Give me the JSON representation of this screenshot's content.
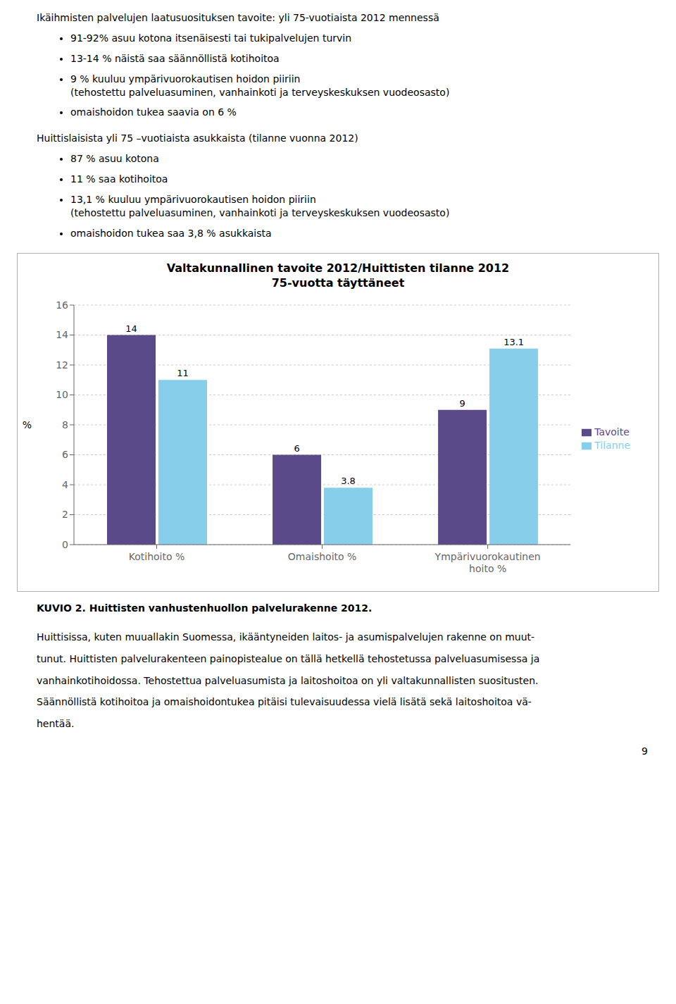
{
  "chart_data": {
    "type": "bar",
    "title": "Valtakunnallinen tavoite 2012/Huittisten tilanne 2012",
    "subtitle": "75-vuotta täyttäneet",
    "categories": [
      "Kotihoito %",
      "Omaishoito %",
      "Ympärivuorokautinen\nhoito %"
    ],
    "series": [
      {
        "name": "Tavoite",
        "color": "#5b4a8a",
        "values": [
          14,
          6,
          9
        ]
      },
      {
        "name": "Tilanne",
        "color": "#87ceeb",
        "values": [
          11,
          3.8,
          13.1
        ]
      }
    ],
    "ylabel": "%",
    "ylim": [
      0,
      16
    ],
    "yticks": [
      0,
      2,
      4,
      6,
      8,
      10,
      12,
      14,
      16
    ],
    "grid": true,
    "legend": "right",
    "data_labels": true
  },
  "sections": [
    {
      "heading": "Ikäihmisten palvelujen laatusuosituksen tavoite: yli 75-vuotiaista 2012 mennessä",
      "items": [
        [
          "91-92% asuu kotona itsenäisesti tai tukipalvelujen turvin"
        ],
        [
          "13-14 % näistä saa säännöllistä kotihoitoa"
        ],
        [
          "9 % kuuluu ympärivuorokautisen hoidon piiriin",
          "(tehostettu palveluasuminen,  vanhainkoti ja terveyskeskuksen vuodeosasto)"
        ],
        [
          "omaishoidon tukea saavia on 6 %"
        ]
      ]
    },
    {
      "heading": "Huittislaisista yli 75 –vuotiaista asukkaista (tilanne vuonna 2012)",
      "items": [
        [
          "87 % asuu kotona"
        ],
        [
          "11  % saa kotihoitoa"
        ],
        [
          "13,1 % kuuluu ympärivuorokautisen hoidon piiriin",
          "(tehostettu palveluasuminen,  vanhainkoti ja terveyskeskuksen vuodeosasto)"
        ],
        [
          "omaishoidon tukea saa 3,8 % asukkaista"
        ]
      ]
    }
  ],
  "caption": "KUVIO 2. Huittisten vanhustenhuollon palvelurakenne 2012.",
  "footer_lines": [
    "Huittisissa, kuten muuallakin Suomessa, ikääntyneiden laitos- ja asumispalvelujen rakenne on muut-",
    "tunut. Huittisten palvelurakenteen painopistealue on tällä hetkellä tehostetussa palveluasumisessa ja",
    "vanhainkotihoidossa. Tehostettua palveluasumista ja laitoshoitoa on yli valtakunnallisten suositusten.",
    "Säännöllistä kotihoitoa ja omaishoidontukea pitäisi tulevaisuudessa vielä lisätä sekä laitoshoitoa vä-",
    "hentää."
  ],
  "page_number": "9"
}
